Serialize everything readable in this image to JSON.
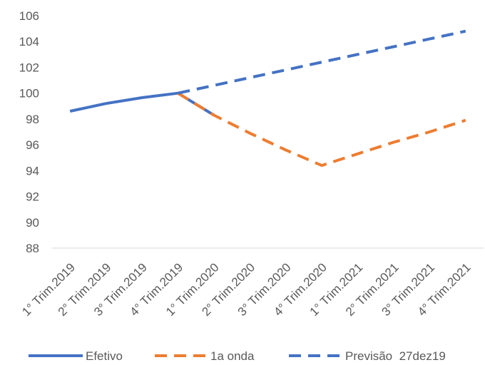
{
  "chart_data": {
    "type": "line",
    "title": "",
    "xlabel": "",
    "ylabel": "",
    "ylim": [
      88,
      106
    ],
    "yticks": [
      88,
      90,
      92,
      94,
      96,
      98,
      100,
      102,
      104,
      106
    ],
    "grid": false,
    "legend_position": "bottom",
    "categories": [
      "1° Trim.2019",
      "2° Trim.2019",
      "3° Trim.2019",
      "4° Trim.2019",
      "1° Trim.2020",
      "2° Trim.2020",
      "3° Trim.2020",
      "4° Trim.2020",
      "1° Trim.2021",
      "2° Trim.2021",
      "3° Trim.2021",
      "4° Trim.2021"
    ],
    "series": [
      {
        "name": "Efetivo",
        "color": "#4472C4",
        "dash": "solid",
        "values": [
          98.6,
          99.2,
          99.65,
          100.0,
          98.3,
          null,
          null,
          null,
          null,
          null,
          null,
          null
        ]
      },
      {
        "name": "1a onda",
        "color": "#ED7D31",
        "dash": "dashed",
        "values": [
          null,
          null,
          null,
          100.0,
          98.3,
          96.9,
          95.6,
          94.4,
          95.3,
          96.2,
          97.0,
          97.9
        ]
      },
      {
        "name": "Previsão  27dez19",
        "color": "#4472C4",
        "dash": "dashed",
        "values": [
          null,
          null,
          null,
          100.0,
          100.6,
          101.2,
          101.8,
          102.4,
          103.0,
          103.6,
          104.2,
          104.8
        ]
      }
    ]
  }
}
